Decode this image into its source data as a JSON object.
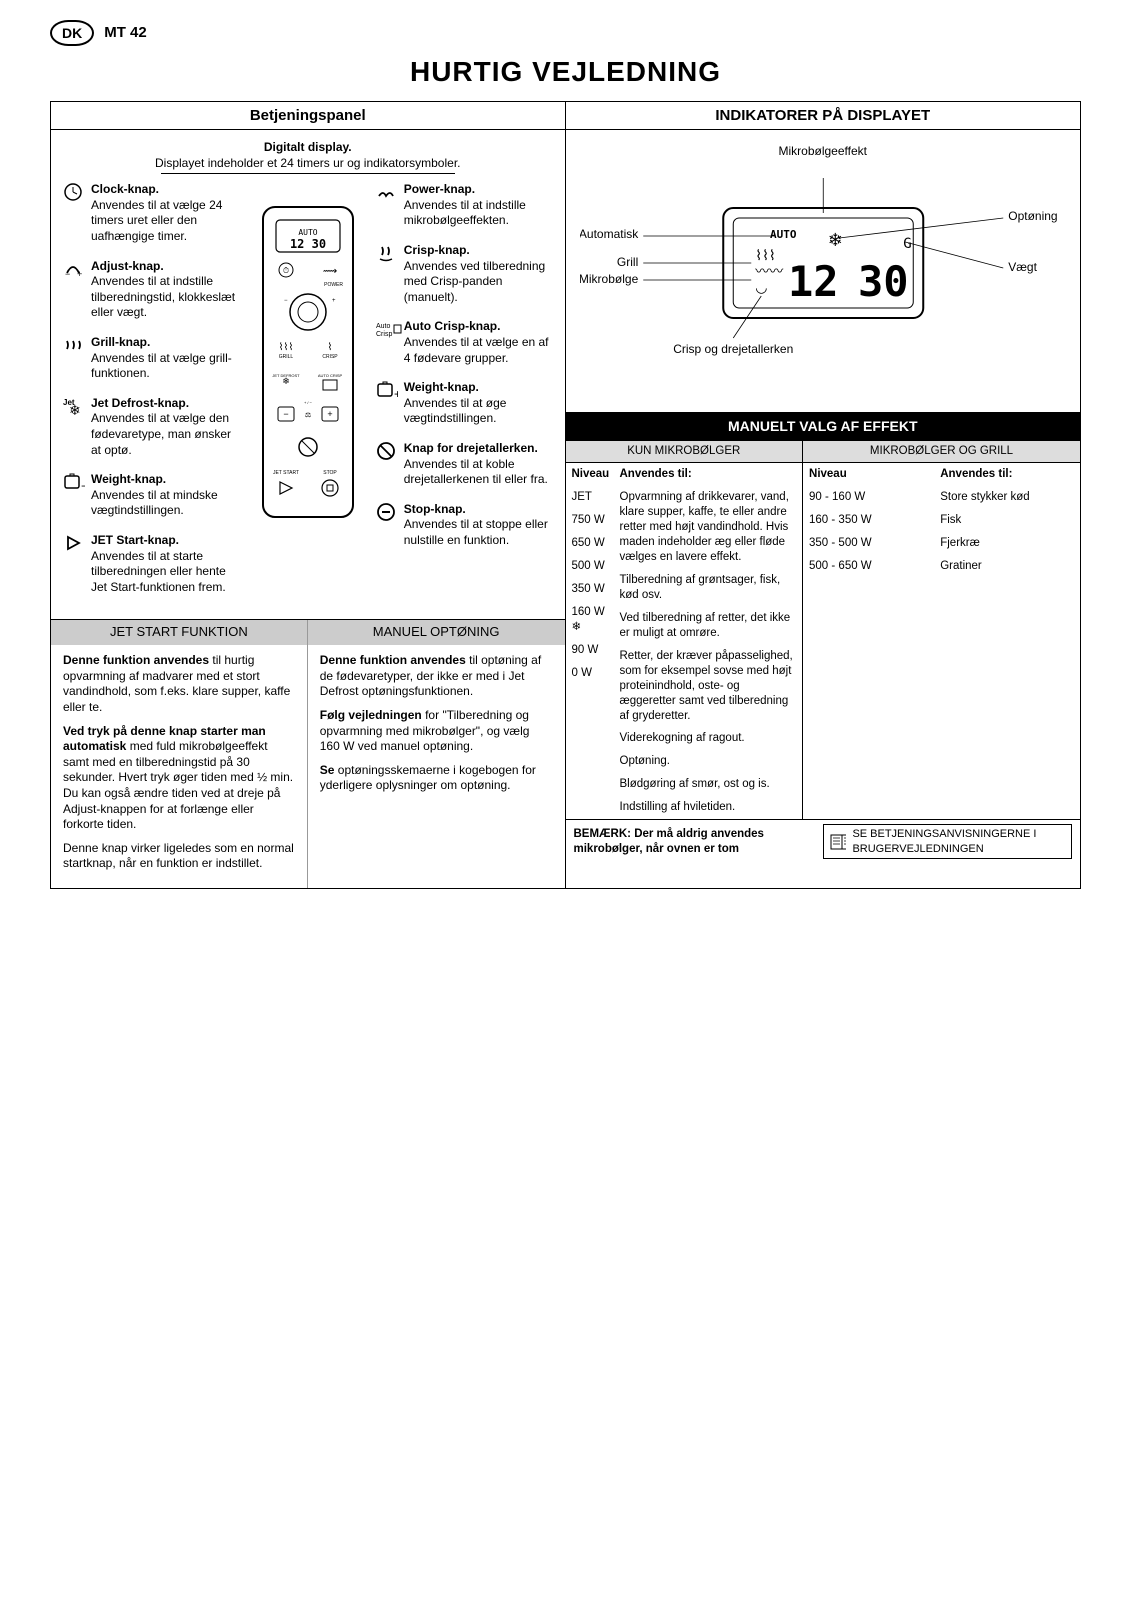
{
  "header": {
    "country": "DK",
    "model": "MT 42"
  },
  "title": "HURTIG VEJLEDNING",
  "left": {
    "panel_title": "Betjeningspanel",
    "digital": {
      "title": "Digitalt display.",
      "desc": "Displayet indeholder et 24 timers ur og indikatorsymboler."
    },
    "callouts_left": [
      {
        "icon": "clock",
        "title": "Clock-knap.",
        "desc": "Anvendes til at vælge 24 timers uret eller den uafhængige timer."
      },
      {
        "icon": "adjust",
        "title": "Adjust-knap.",
        "desc": "Anvendes til at indstille tilberedningstid, klokkeslæt eller vægt."
      },
      {
        "icon": "grill",
        "title": "Grill-knap.",
        "desc": "Anvendes til at vælge grill-funktionen."
      },
      {
        "icon": "jetdef",
        "title": "Jet Defrost-knap.",
        "desc": "Anvendes til at vælge den fødevaretype, man ønsker at optø."
      },
      {
        "icon": "weightm",
        "title": "Weight-knap.",
        "desc": "Anvendes til at mindske vægtindstillingen."
      },
      {
        "icon": "jetst",
        "title": "JET Start-knap.",
        "desc": "Anvendes til at starte tilberedningen eller hente Jet Start-funktionen frem."
      }
    ],
    "callouts_right": [
      {
        "icon": "power",
        "title": "Power-knap.",
        "desc": "Anvendes til at indstille mikrobølgeeffekten."
      },
      {
        "icon": "crisp",
        "title": "Crisp-knap.",
        "desc": "Anvendes ved tilberedning med Crisp-panden (manuelt)."
      },
      {
        "icon": "autocrisp",
        "title": "Auto Crisp-knap.",
        "desc": "Anvendes til at vælge en af 4 fødevare grupper."
      },
      {
        "icon": "weightp",
        "title": "Weight-knap.",
        "desc": "Anvendes til at øge vægtindstillingen."
      },
      {
        "icon": "turnt",
        "title": "Knap for drejetallerken.",
        "desc": "Anvendes til at koble drejetallerkenen til eller fra."
      },
      {
        "icon": "stop",
        "title": "Stop-knap.",
        "desc": "Anvendes til at stoppe eller nulstille en funktion."
      }
    ],
    "jet_header": "JET START FUNKTION",
    "manuel_header": "MANUEL OPTØNING",
    "jet_left": [
      "Denne funktion anvendes til hurtig opvarmning af madvarer med et stort vandindhold, som f.eks. klare supper, kaffe eller te.",
      "Ved tryk på denne knap starter man automatisk med fuld mikrobølgeeffekt samt med en tilberedningstid på 30 sekunder. Hvert tryk øger tiden med ½ min. Du kan også ændre tiden ved at dreje på Adjust-knappen for at forlænge eller forkorte tiden.",
      "Denne knap virker ligeledes som en normal startknap, når en funktion er indstillet."
    ],
    "jet_right": [
      "Denne funktion anvendes til optøning af de fødevaretyper, der ikke er med i Jet Defrost optøningsfunktionen.",
      "Følg vejledningen for \"Tilberedning og opvarmning med mikrobølger\", og vælg 160 W ved manuel optøning.",
      "Se optøningsskemaerne i kogebogen for yderligere oplysninger om optøning."
    ]
  },
  "right": {
    "indikator_title": "INDIKATORER PÅ DISPLAYET",
    "diagram_labels": {
      "mikro_eff": "Mikrobølgeeffekt",
      "auto": "Automatisk",
      "grill": "Grill",
      "mikro": "Mikrobølge",
      "crisp_plate": "Crisp og drejetallerken",
      "optoning": "Optøning",
      "vaegt": "Vægt"
    },
    "digital_time": "12",
    "digital_other": "30",
    "effekt_header": "MANUELT VALG AF EFFEKT",
    "sub_left": "KUN MIKROBØLGER",
    "sub_right": "MIKROBØLGER OG GRILL",
    "col_niveau": "Niveau",
    "col_anv": "Anvendes til:",
    "mikro_rows": [
      {
        "niv": "JET",
        "txt": "Opvarmning af drikkevarer, vand, klare supper, kaffe, te eller andre retter med højt vandindhold. Hvis maden indeholder æg eller fløde vælges en lavere effekt."
      },
      {
        "niv": "750 W",
        "txt": "Tilberedning af grøntsager, fisk, kød osv."
      },
      {
        "niv": "650 W",
        "txt": "Ved tilberedning af retter, det ikke er muligt at omrøre."
      },
      {
        "niv": "500 W",
        "txt": "Retter, der kræver påpasselighed, som for eksempel sovse med højt proteinindhold, oste- og æggeretter samt ved tilberedning af gryderetter."
      },
      {
        "niv": "350 W",
        "txt": "Viderekogning af ragout."
      },
      {
        "niv": "160 W",
        "txt": "Optøning.",
        "icon": true
      },
      {
        "niv": "90 W",
        "txt": "Blødgøring af smør, ost og is."
      },
      {
        "niv": "0 W",
        "txt": "Indstilling af hviletiden."
      }
    ],
    "grill_rows": [
      {
        "niv": "90 - 160 W",
        "txt": "Store stykker kød"
      },
      {
        "niv": "160 - 350 W",
        "txt": "Fisk"
      },
      {
        "niv": "350 - 500 W",
        "txt": "Fjerkræ"
      },
      {
        "niv": "500 - 650 W",
        "txt": "Gratiner"
      }
    ]
  },
  "footer": {
    "bemark": "BEMÆRK: Der må aldrig anvendes mikrobølger, når ovnen er tom",
    "see": "SE BETJENINGSANVISNINGERNE I BRUGERVEJLEDNINGEN"
  },
  "colors": {
    "black": "#000000",
    "grey": "#cccccc"
  }
}
